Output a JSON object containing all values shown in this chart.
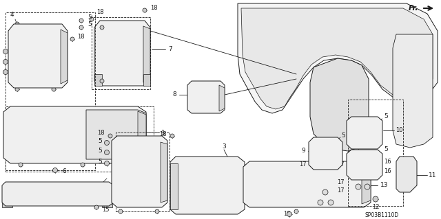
{
  "bg_color": "#ffffff",
  "fg_color": "#1a1a1a",
  "diagram_code": "SP03B1110D",
  "figsize": [
    6.4,
    3.19
  ],
  "dpi": 100
}
